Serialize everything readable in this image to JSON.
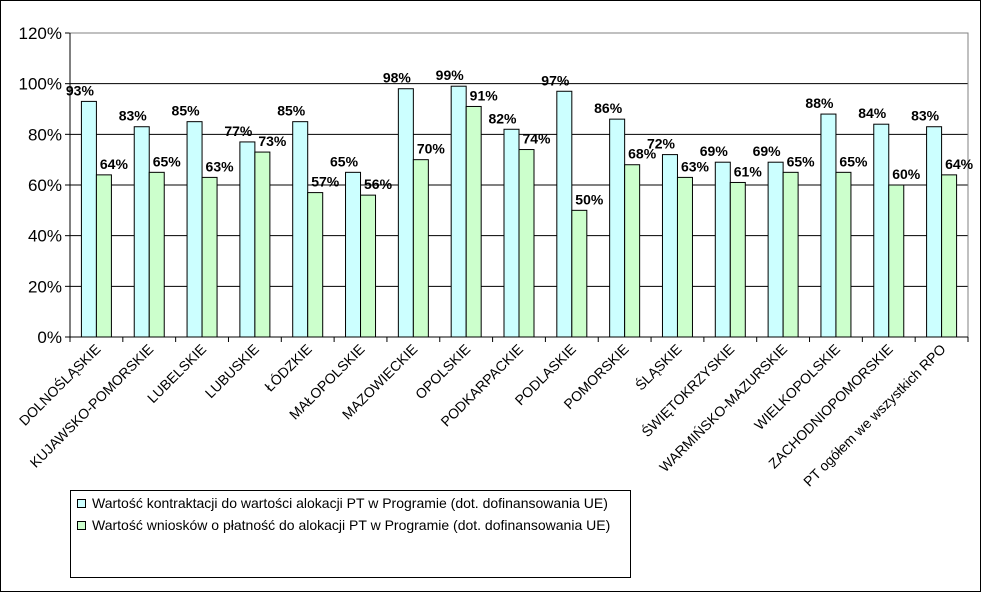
{
  "chart_data": {
    "type": "bar",
    "title": "",
    "xlabel": "",
    "ylabel": "",
    "ylim": [
      0,
      120
    ],
    "yticks": [
      0,
      20,
      40,
      60,
      80,
      100,
      120
    ],
    "ytick_labels": [
      "0%",
      "20%",
      "40%",
      "60%",
      "80%",
      "100%",
      "120%"
    ],
    "grid": true,
    "legend_position": "bottom-left",
    "categories": [
      "DOLNOŚLĄSKIE",
      "KUJAWSKO-POMORSKIE",
      "LUBELSKIE",
      "LUBUSKIE",
      "ŁÓDZKIE",
      "MAŁOPOLSKIE",
      "MAZOWIECKIE",
      "OPOLSKIE",
      "PODKARPACKIE",
      "PODLASKIE",
      "POMORSKIE",
      "ŚLĄSKIE",
      "ŚWIĘTOKRZYSKIE",
      "WARMIŃSKO-MAZURSKIE",
      "WIELKOPOLSKIE",
      "ZACHODNIOPOMORSKIE",
      "PT ogółem we wszystkich RPO"
    ],
    "series": [
      {
        "name": "Wartość kontraktacji do wartości alokacji PT w Programie (dot. dofinansowania UE)",
        "color": "#ccffff",
        "values": [
          93,
          83,
          85,
          77,
          85,
          65,
          98,
          99,
          82,
          97,
          86,
          72,
          69,
          69,
          88,
          84,
          83
        ],
        "labels": [
          "93%",
          "83%",
          "85%",
          "77%",
          "85%",
          "65%",
          "98%",
          "99%",
          "82%",
          "97%",
          "86%",
          "72%",
          "69%",
          "69%",
          "88%",
          "84%",
          "83%"
        ]
      },
      {
        "name": "Wartość wniosków o płatność do alokacji PT w Programie (dot. dofinansowania UE)",
        "color": "#ccffcc",
        "values": [
          64,
          65,
          63,
          73,
          57,
          56,
          70,
          91,
          74,
          50,
          68,
          63,
          61,
          65,
          65,
          60,
          64
        ],
        "labels": [
          "64%",
          "65%",
          "63%",
          "73%",
          "57%",
          "56%",
          "70%",
          "91%",
          "74%",
          "50%",
          "68%",
          "63%",
          "61%",
          "65%",
          "65%",
          "60%",
          "64%"
        ]
      }
    ]
  }
}
